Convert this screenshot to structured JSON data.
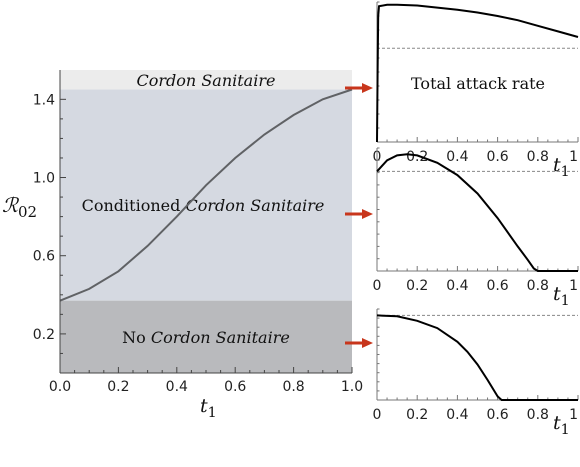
{
  "chart_data": [
    {
      "type": "area",
      "xlabel": "t",
      "xlabel_sub": "1",
      "ylabel": "ℛ",
      "ylabel_sub": "02",
      "xlim": [
        0,
        1
      ],
      "ylim": [
        0.0,
        1.55
      ],
      "xticks": [
        "0.0",
        "0.2",
        "0.4",
        "0.6",
        "0.8",
        "1.0"
      ],
      "yticks": [
        "0.2",
        "0.6",
        "1.0",
        "1.4"
      ],
      "xtick_values": [
        0,
        0.2,
        0.4,
        0.6,
        0.8,
        1.0
      ],
      "ytick_values": [
        0.2,
        0.6,
        1.0,
        1.4
      ],
      "regions": [
        {
          "label_plain": "",
          "label_italic": "Cordon Sanitaire",
          "y_from": 1.45,
          "y_to": 1.55,
          "color": "#ececec"
        },
        {
          "label_plain": "Conditioned ",
          "label_italic": "Cordon Sanitaire",
          "y_from": 0.37,
          "y_to": 1.45,
          "color": "#d5d9e1"
        },
        {
          "label_plain": "No ",
          "label_italic": "Cordon Sanitaire",
          "y_from": 0.0,
          "y_to": 0.37,
          "color": "#b9babd"
        }
      ],
      "curve": {
        "x": [
          0,
          0.1,
          0.2,
          0.3,
          0.4,
          0.5,
          0.6,
          0.7,
          0.8,
          0.9,
          1.0
        ],
        "y": [
          0.37,
          0.43,
          0.52,
          0.65,
          0.8,
          0.96,
          1.1,
          1.22,
          1.32,
          1.4,
          1.45
        ]
      }
    },
    {
      "type": "line",
      "annotation": "Total attack rate",
      "xlabel": "t",
      "xlabel_sub": "1",
      "xticks": [
        "0",
        "0.2",
        "0.4",
        "0.6",
        "0.8",
        "1"
      ],
      "xlim": [
        0,
        1
      ],
      "ylim": [
        0,
        1
      ],
      "reference_level": 0.67,
      "curve": {
        "x": [
          0,
          0.003,
          0.006,
          0.01,
          0.05,
          0.1,
          0.2,
          0.3,
          0.4,
          0.5,
          0.6,
          0.7,
          0.8,
          0.9,
          1.0
        ],
        "y": [
          0.0,
          0.5,
          0.9,
          0.97,
          0.98,
          0.98,
          0.975,
          0.96,
          0.945,
          0.925,
          0.9,
          0.87,
          0.83,
          0.79,
          0.75
        ]
      }
    },
    {
      "type": "line",
      "xlabel": "t",
      "xlabel_sub": "1",
      "xticks": [
        "0",
        "0.2",
        "0.4",
        "0.6",
        "0.8",
        "1"
      ],
      "xlim": [
        0,
        1
      ],
      "ylim": [
        0,
        1
      ],
      "reference_level": 0.81,
      "curve": {
        "x": [
          0,
          0.05,
          0.1,
          0.15,
          0.2,
          0.3,
          0.4,
          0.5,
          0.6,
          0.7,
          0.75,
          0.78,
          0.8,
          0.85,
          0.9,
          1.0
        ],
        "y": [
          0.81,
          0.9,
          0.94,
          0.95,
          0.94,
          0.88,
          0.78,
          0.63,
          0.43,
          0.2,
          0.09,
          0.02,
          0.0,
          0.0,
          0.0,
          0.0
        ]
      }
    },
    {
      "type": "line",
      "xlabel": "t",
      "xlabel_sub": "1",
      "xticks": [
        "0",
        "0.2",
        "0.4",
        "0.6",
        "0.8",
        "1"
      ],
      "xlim": [
        0,
        1
      ],
      "ylim": [
        0,
        1
      ],
      "reference_level": 0.93,
      "curve": {
        "x": [
          0,
          0.1,
          0.2,
          0.3,
          0.4,
          0.45,
          0.5,
          0.55,
          0.6,
          0.62,
          0.7,
          0.8,
          0.9,
          1.0
        ],
        "y": [
          0.93,
          0.92,
          0.87,
          0.79,
          0.64,
          0.53,
          0.39,
          0.22,
          0.04,
          0.0,
          0.0,
          0.0,
          0.0,
          0.0
        ]
      }
    }
  ],
  "colors": {
    "arrow": "#c8361c",
    "curve_main": "#606265",
    "curve_small": "#000000",
    "reference": "#888888"
  }
}
